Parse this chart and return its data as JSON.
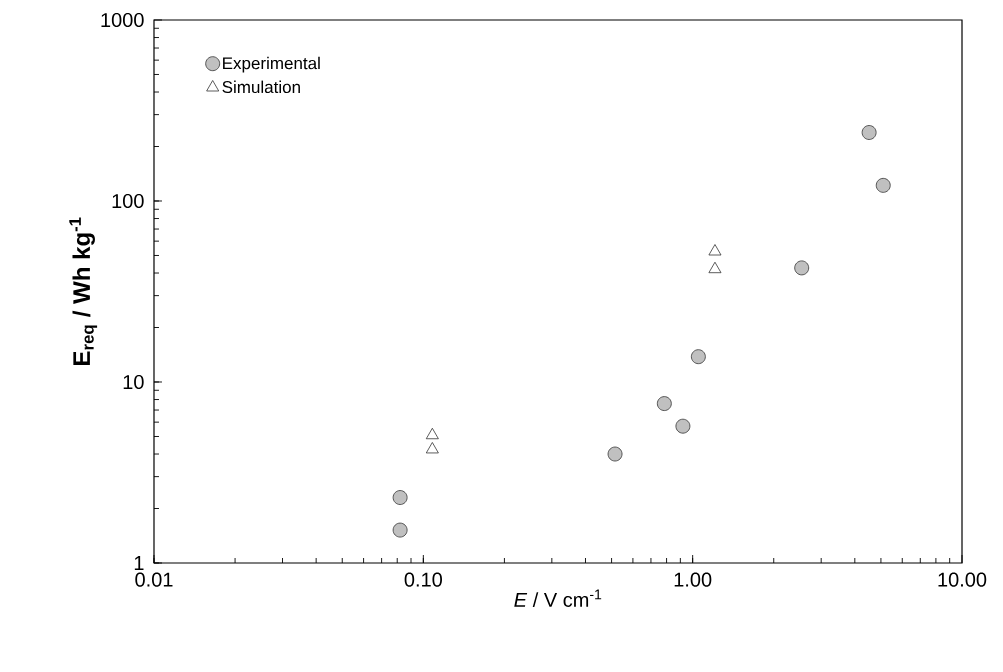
{
  "chart_data": {
    "type": "scatter",
    "xlabel": "*E* / V cm$^{-1}$",
    "ylabel": "E$_{req}$ / Wh kg$^{-1}$",
    "log": "xy",
    "grid": false,
    "legend": "top left",
    "xlim": [
      0.01,
      10
    ],
    "ylim": [
      1,
      1000
    ],
    "xticks": [
      {
        "value": 0.01,
        "label": "0.01"
      },
      {
        "value": 0.1,
        "label": "0.10"
      },
      {
        "value": 1,
        "label": "1.00"
      },
      {
        "value": 10,
        "label": "10.00"
      }
    ],
    "yticks": [
      1,
      10,
      100,
      1000
    ],
    "series": [
      {
        "name": "Experimental",
        "color": "#c0c0c0",
        "marker": "circle",
        "x": [
          0.082,
          0.082,
          0.515,
          0.785,
          0.92,
          1.05,
          2.54,
          4.52,
          5.1
        ],
        "values": [
          2.3,
          1.52,
          4.0,
          7.6,
          5.7,
          13.8,
          42.7,
          239,
          122
        ]
      },
      {
        "name": "Simulation",
        "color": "#ffffff",
        "marker": "triangle",
        "x": [
          0.108,
          0.108,
          1.21,
          1.21
        ],
        "values": [
          5.08,
          4.24,
          52.6,
          42
        ]
      }
    ]
  }
}
